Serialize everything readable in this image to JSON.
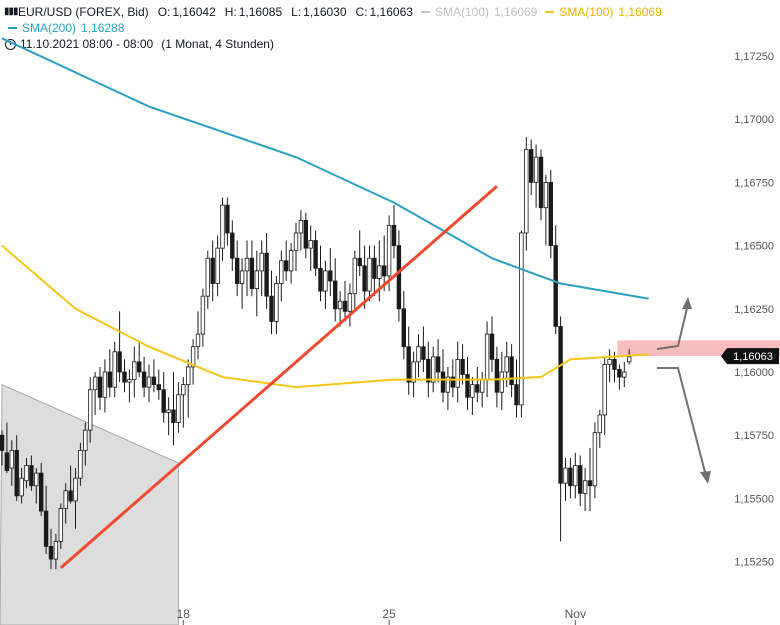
{
  "legend": {
    "symbol": "EUR/USD (FOREX, Bid)",
    "open_key": "O:",
    "open": "1,16042",
    "high_key": "H:",
    "high": "1,16085",
    "low_key": "L:",
    "low": "1,16030",
    "close_key": "C:",
    "close": "1,16063",
    "sma100_gray_label": "SMA(100)",
    "sma100_gray_value": "1,16069",
    "sma100_label": "SMA(100)",
    "sma100_value": "1,16069",
    "sma200_label": "SMA(200)",
    "sma200_value": "1,16288",
    "date_label": "11.10.2021 08:00 - 08:00",
    "period_label": "(1 Monat, 4 Stunden)"
  },
  "colors": {
    "sma100": "#f5c518",
    "sma100_gray": "#c8c8c8",
    "sma200": "#2a9fc4",
    "trendline": "#f04a30",
    "zone": "#f7b5b5",
    "arrows": "#707070",
    "triangle": "#dddddd",
    "candle": "#1a1a1a"
  },
  "chart_data": {
    "type": "candlestick",
    "y_ticks": [
      "1,17250",
      "1,17000",
      "1,16750",
      "1,16500",
      "1,16250",
      "1,16000",
      "1,15750",
      "1,15500",
      "1,15250"
    ],
    "y_tick_values": [
      1.1725,
      1.17,
      1.1675,
      1.165,
      1.1625,
      1.16,
      1.1575,
      1.155,
      1.1525
    ],
    "x_ticks": [
      "18",
      "25",
      "Nov"
    ],
    "x_tick_index": [
      37,
      79,
      117
    ],
    "last_price_label": "1,16063",
    "last_price": 1.16063,
    "candles": [
      [
        1.1575,
        1.1577,
        1.1563,
        1.1569
      ],
      [
        1.1568,
        1.158,
        1.156,
        1.1561
      ],
      [
        1.1562,
        1.1573,
        1.1555,
        1.1569
      ],
      [
        1.1569,
        1.1575,
        1.1549,
        1.1551
      ],
      [
        1.1551,
        1.1562,
        1.1548,
        1.1558
      ],
      [
        1.1557,
        1.1566,
        1.1554,
        1.1563
      ],
      [
        1.1563,
        1.1567,
        1.1553,
        1.1555
      ],
      [
        1.1555,
        1.1562,
        1.1548,
        1.156
      ],
      [
        1.156,
        1.1564,
        1.1543,
        1.1545
      ],
      [
        1.1545,
        1.1555,
        1.1528,
        1.1531
      ],
      [
        1.1531,
        1.1538,
        1.1522,
        1.1526
      ],
      [
        1.1526,
        1.1536,
        1.1522,
        1.1533
      ],
      [
        1.1533,
        1.1548,
        1.153,
        1.1546
      ],
      [
        1.1546,
        1.1556,
        1.154,
        1.1553
      ],
      [
        1.1553,
        1.1563,
        1.1548,
        1.1549
      ],
      [
        1.1549,
        1.1562,
        1.1538,
        1.1558
      ],
      [
        1.1558,
        1.1572,
        1.1555,
        1.1569
      ],
      [
        1.1569,
        1.158,
        1.1563,
        1.1577
      ],
      [
        1.1577,
        1.1598,
        1.1572,
        1.1593
      ],
      [
        1.1593,
        1.16,
        1.1583,
        1.1598
      ],
      [
        1.1598,
        1.1602,
        1.1585,
        1.159
      ],
      [
        1.159,
        1.1605,
        1.1584,
        1.16
      ],
      [
        1.16,
        1.1609,
        1.159,
        1.1594
      ],
      [
        1.1594,
        1.1612,
        1.159,
        1.1608
      ],
      [
        1.1608,
        1.1624,
        1.1596,
        1.16
      ],
      [
        1.16,
        1.1605,
        1.1592,
        1.1596
      ],
      [
        1.1596,
        1.1601,
        1.1588,
        1.1597
      ],
      [
        1.1597,
        1.161,
        1.159,
        1.1604
      ],
      [
        1.1604,
        1.1612,
        1.1598,
        1.16
      ],
      [
        1.16,
        1.1606,
        1.159,
        1.1594
      ],
      [
        1.1594,
        1.1603,
        1.1588,
        1.1598
      ],
      [
        1.1598,
        1.1605,
        1.1592,
        1.1595
      ],
      [
        1.1595,
        1.1601,
        1.1589,
        1.1593
      ],
      [
        1.1593,
        1.16,
        1.158,
        1.1584
      ],
      [
        1.1584,
        1.159,
        1.1575,
        1.1585
      ],
      [
        1.1585,
        1.16,
        1.1571,
        1.158
      ],
      [
        1.158,
        1.1596,
        1.1576,
        1.1591
      ],
      [
        1.1591,
        1.1598,
        1.1578,
        1.1595
      ],
      [
        1.1595,
        1.1605,
        1.1582,
        1.1602
      ],
      [
        1.1602,
        1.1613,
        1.1595,
        1.161
      ],
      [
        1.161,
        1.1624,
        1.1605,
        1.1615
      ],
      [
        1.1615,
        1.1633,
        1.161,
        1.163
      ],
      [
        1.163,
        1.1648,
        1.1625,
        1.1645
      ],
      [
        1.1645,
        1.1652,
        1.1628,
        1.1635
      ],
      [
        1.1635,
        1.1654,
        1.163,
        1.1649
      ],
      [
        1.1649,
        1.1669,
        1.1644,
        1.1666
      ],
      [
        1.1666,
        1.1669,
        1.165,
        1.1655
      ],
      [
        1.1655,
        1.166,
        1.164,
        1.1645
      ],
      [
        1.1645,
        1.1652,
        1.163,
        1.1635
      ],
      [
        1.1635,
        1.1645,
        1.1625,
        1.164
      ],
      [
        1.164,
        1.1652,
        1.163,
        1.1645
      ],
      [
        1.1645,
        1.1652,
        1.163,
        1.1633
      ],
      [
        1.1633,
        1.1648,
        1.1622,
        1.164
      ],
      [
        1.164,
        1.1652,
        1.163,
        1.1647
      ],
      [
        1.1647,
        1.1655,
        1.1625,
        1.163
      ],
      [
        1.163,
        1.164,
        1.1615,
        1.162
      ],
      [
        1.162,
        1.1638,
        1.1615,
        1.1635
      ],
      [
        1.1635,
        1.1648,
        1.1628,
        1.1644
      ],
      [
        1.1644,
        1.1652,
        1.1636,
        1.164
      ],
      [
        1.164,
        1.1651,
        1.1635,
        1.1648
      ],
      [
        1.1648,
        1.1659,
        1.164,
        1.1655
      ],
      [
        1.1655,
        1.1664,
        1.1648,
        1.166
      ],
      [
        1.166,
        1.1663,
        1.1645,
        1.1649
      ],
      [
        1.1649,
        1.1658,
        1.164,
        1.1652
      ],
      [
        1.1652,
        1.1656,
        1.1638,
        1.1641
      ],
      [
        1.1641,
        1.165,
        1.1628,
        1.1632
      ],
      [
        1.1632,
        1.1644,
        1.1625,
        1.164
      ],
      [
        1.164,
        1.1649,
        1.163,
        1.1636
      ],
      [
        1.1636,
        1.1645,
        1.162,
        1.1625
      ],
      [
        1.1625,
        1.1632,
        1.1618,
        1.1628
      ],
      [
        1.1628,
        1.1636,
        1.162,
        1.1624
      ],
      [
        1.1624,
        1.1635,
        1.1618,
        1.1631
      ],
      [
        1.1631,
        1.1648,
        1.1625,
        1.1645
      ],
      [
        1.1645,
        1.1656,
        1.1638,
        1.1642
      ],
      [
        1.1642,
        1.165,
        1.1625,
        1.1632
      ],
      [
        1.1632,
        1.165,
        1.1628,
        1.1645
      ],
      [
        1.1645,
        1.165,
        1.163,
        1.1637
      ],
      [
        1.1637,
        1.1652,
        1.1628,
        1.1642
      ],
      [
        1.1642,
        1.1654,
        1.1632,
        1.1638
      ],
      [
        1.1638,
        1.1662,
        1.1632,
        1.1658
      ],
      [
        1.1658,
        1.1666,
        1.1645,
        1.165
      ],
      [
        1.165,
        1.1656,
        1.162,
        1.1625
      ],
      [
        1.1625,
        1.1632,
        1.1605,
        1.161
      ],
      [
        1.161,
        1.1618,
        1.1591,
        1.1596
      ],
      [
        1.1596,
        1.1608,
        1.159,
        1.1604
      ],
      [
        1.1604,
        1.1615,
        1.1598,
        1.161
      ],
      [
        1.161,
        1.1618,
        1.16,
        1.1605
      ],
      [
        1.1605,
        1.1612,
        1.159,
        1.1596
      ],
      [
        1.1596,
        1.161,
        1.1592,
        1.1606
      ],
      [
        1.1606,
        1.1613,
        1.1596,
        1.16
      ],
      [
        1.16,
        1.1609,
        1.1588,
        1.1592
      ],
      [
        1.1592,
        1.1602,
        1.1585,
        1.1598
      ],
      [
        1.1598,
        1.1605,
        1.159,
        1.1594
      ],
      [
        1.1594,
        1.1612,
        1.1588,
        1.1605
      ],
      [
        1.1605,
        1.1611,
        1.1595,
        1.1599
      ],
      [
        1.1599,
        1.1606,
        1.1585,
        1.159
      ],
      [
        1.159,
        1.1598,
        1.1583,
        1.1595
      ],
      [
        1.1595,
        1.1602,
        1.1588,
        1.1592
      ],
      [
        1.1592,
        1.16,
        1.1586,
        1.1597
      ],
      [
        1.1597,
        1.162,
        1.159,
        1.1615
      ],
      [
        1.1615,
        1.1622,
        1.16,
        1.1605
      ],
      [
        1.1605,
        1.161,
        1.1586,
        1.1592
      ],
      [
        1.1592,
        1.1608,
        1.1585,
        1.16
      ],
      [
        1.16,
        1.1612,
        1.1594,
        1.1606
      ],
      [
        1.1606,
        1.1611,
        1.159,
        1.1595
      ],
      [
        1.1595,
        1.1605,
        1.1582,
        1.1587
      ],
      [
        1.1587,
        1.1656,
        1.1582,
        1.1655
      ],
      [
        1.1655,
        1.1693,
        1.1648,
        1.1688
      ],
      [
        1.1688,
        1.1692,
        1.167,
        1.1675
      ],
      [
        1.1675,
        1.169,
        1.1665,
        1.1685
      ],
      [
        1.1685,
        1.1688,
        1.166,
        1.1665
      ],
      [
        1.1665,
        1.1678,
        1.165,
        1.1675
      ],
      [
        1.1675,
        1.168,
        1.1645,
        1.165
      ],
      [
        1.165,
        1.1658,
        1.1615,
        1.1618
      ],
      [
        1.1618,
        1.1622,
        1.1533,
        1.1556
      ],
      [
        1.1556,
        1.1566,
        1.1549,
        1.1562
      ],
      [
        1.1562,
        1.1566,
        1.155,
        1.1555
      ],
      [
        1.1555,
        1.1568,
        1.155,
        1.1563
      ],
      [
        1.1563,
        1.1567,
        1.1547,
        1.1552
      ],
      [
        1.1552,
        1.1562,
        1.1545,
        1.1557
      ],
      [
        1.1557,
        1.157,
        1.1545,
        1.1555
      ],
      [
        1.1555,
        1.158,
        1.155,
        1.1576
      ],
      [
        1.1576,
        1.1585,
        1.157,
        1.1583
      ],
      [
        1.1583,
        1.1606,
        1.1575,
        1.1603
      ],
      [
        1.1603,
        1.1609,
        1.1596,
        1.1605
      ],
      [
        1.1605,
        1.1608,
        1.1596,
        1.1601
      ],
      [
        1.1601,
        1.1603,
        1.1593,
        1.1598
      ],
      [
        1.1598,
        1.1604,
        1.1594,
        1.16
      ],
      [
        1.1604,
        1.1609,
        1.1603,
        1.1606
      ]
    ],
    "sma200": [
      [
        0,
        1.1732
      ],
      [
        30,
        1.1705
      ],
      [
        60,
        1.1685
      ],
      [
        80,
        1.1667
      ],
      [
        100,
        1.1645
      ],
      [
        114,
        1.1635
      ],
      [
        132,
        1.1629
      ]
    ],
    "sma100": [
      [
        0,
        1.165
      ],
      [
        15,
        1.1625
      ],
      [
        30,
        1.161
      ],
      [
        45,
        1.1598
      ],
      [
        60,
        1.1594
      ],
      [
        80,
        1.1597
      ],
      [
        100,
        1.1597
      ],
      [
        110,
        1.1598
      ],
      [
        116,
        1.1605
      ],
      [
        132,
        1.1607
      ]
    ],
    "trendline": [
      [
        12,
        1.15225
      ],
      [
        101,
        1.16735
      ]
    ],
    "resistance_zone": [
      1.16063,
      1.16125
    ],
    "triangle_top": [
      [
        0,
        1.1595
      ],
      [
        36,
        1.1564
      ]
    ]
  }
}
